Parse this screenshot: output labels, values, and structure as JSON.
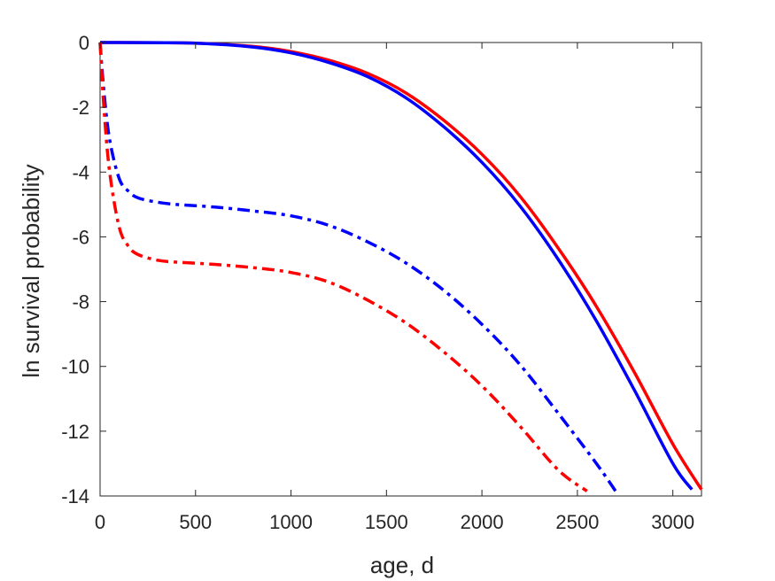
{
  "chart_data": {
    "type": "line",
    "title": "",
    "xlabel": "age, d",
    "ylabel": "ln survival probability",
    "xlim": [
      0,
      3150
    ],
    "ylim": [
      -14,
      0
    ],
    "xticks": [
      0,
      500,
      1000,
      1500,
      2000,
      2500,
      3000
    ],
    "yticks": [
      0,
      -2,
      -4,
      -6,
      -8,
      -10,
      -12,
      -14
    ],
    "xtick_labels": [
      "0",
      "500",
      "1000",
      "1500",
      "2000",
      "2500",
      "3000"
    ],
    "ytick_labels": [
      "0",
      "-2",
      "-4",
      "-6",
      "-8",
      "-10",
      "-12",
      "-14"
    ],
    "grid": false,
    "legend": "none",
    "series": [
      {
        "color": "#ff0000",
        "style": "solid",
        "x": [
          0,
          500,
          800,
          1000,
          1200,
          1400,
          1600,
          1800,
          2000,
          2200,
          2400,
          2600,
          2800,
          3000,
          3150
        ],
        "y": [
          0,
          -0.02,
          -0.12,
          -0.28,
          -0.55,
          -0.95,
          -1.55,
          -2.4,
          -3.45,
          -4.75,
          -6.35,
          -8.15,
          -10.2,
          -12.4,
          -13.8
        ]
      },
      {
        "color": "#0000ff",
        "style": "solid",
        "x": [
          0,
          500,
          800,
          1000,
          1200,
          1400,
          1600,
          1800,
          2000,
          2200,
          2400,
          2600,
          2800,
          3000,
          3100
        ],
        "y": [
          0,
          -0.02,
          -0.14,
          -0.32,
          -0.62,
          -1.05,
          -1.7,
          -2.6,
          -3.7,
          -5.05,
          -6.7,
          -8.6,
          -10.75,
          -13.0,
          -13.8
        ]
      },
      {
        "color": "#0000ff",
        "style": "dashdot",
        "x": [
          0,
          20,
          50,
          100,
          150,
          200,
          300,
          400,
          600,
          800,
          1000,
          1200,
          1400,
          1600,
          1800,
          2000,
          2200,
          2400,
          2600,
          2700
        ],
        "y": [
          0,
          -1.5,
          -3.0,
          -4.2,
          -4.6,
          -4.8,
          -4.93,
          -5.0,
          -5.08,
          -5.2,
          -5.35,
          -5.65,
          -6.15,
          -6.8,
          -7.65,
          -8.7,
          -9.95,
          -11.45,
          -13.0,
          -13.85
        ]
      },
      {
        "color": "#ff0000",
        "style": "dashdot",
        "x": [
          0,
          20,
          50,
          100,
          150,
          200,
          300,
          400,
          600,
          800,
          1000,
          1200,
          1400,
          1600,
          1800,
          2000,
          2200,
          2400,
          2550
        ],
        "y": [
          0,
          -2.0,
          -4.0,
          -5.7,
          -6.3,
          -6.55,
          -6.72,
          -6.78,
          -6.85,
          -6.95,
          -7.1,
          -7.4,
          -7.95,
          -8.65,
          -9.55,
          -10.6,
          -11.85,
          -13.2,
          -13.85
        ]
      }
    ]
  }
}
